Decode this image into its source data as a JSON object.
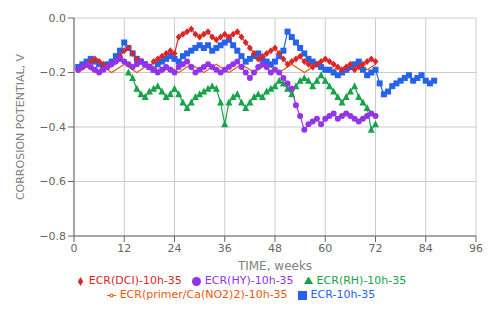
{
  "chart_data": {
    "type": "line",
    "xlabel": "TIME, weeks",
    "ylabel": "CORROSION POTENTIAL, V",
    "xlim": [
      0,
      96
    ],
    "ylim": [
      -0.8,
      0
    ],
    "xticks": [
      0,
      12,
      24,
      36,
      48,
      60,
      72,
      84,
      96
    ],
    "yticks": [
      {
        "value": 0,
        "label": "0.0"
      },
      {
        "value": -0.2,
        "label": "−0.2"
      },
      {
        "value": -0.4,
        "label": "−0.4"
      },
      {
        "value": -0.6,
        "label": "−0.6"
      },
      {
        "value": -0.8,
        "label": "−0.8"
      }
    ],
    "grid": true,
    "legend": "bottom",
    "series": [
      {
        "name": "ECR-10h-35",
        "color": "#2563eb",
        "marker": "square",
        "x": [
          1,
          2,
          3,
          4,
          5,
          6,
          7,
          8,
          9,
          10,
          11,
          12,
          13,
          14,
          15,
          16,
          17,
          18,
          19,
          20,
          21,
          22,
          23,
          24,
          25,
          26,
          27,
          28,
          29,
          30,
          31,
          32,
          33,
          34,
          35,
          36,
          37,
          38,
          39,
          40,
          41,
          42,
          43,
          44,
          45,
          46,
          47,
          48,
          49,
          50,
          51,
          52,
          53,
          54,
          55,
          56,
          57,
          58,
          59,
          60,
          61,
          62,
          63,
          64,
          65,
          66,
          67,
          68,
          69,
          70,
          71,
          72,
          73,
          74,
          75,
          76,
          77,
          78,
          79,
          80,
          81,
          82,
          83,
          84,
          85,
          86
        ],
        "values": [
          -0.18,
          -0.17,
          -0.16,
          -0.15,
          -0.16,
          -0.17,
          -0.18,
          -0.17,
          -0.16,
          -0.14,
          -0.12,
          -0.09,
          -0.11,
          -0.13,
          -0.15,
          -0.16,
          -0.17,
          -0.18,
          -0.19,
          -0.17,
          -0.16,
          -0.15,
          -0.14,
          -0.15,
          -0.16,
          -0.14,
          -0.13,
          -0.12,
          -0.11,
          -0.1,
          -0.11,
          -0.1,
          -0.12,
          -0.11,
          -0.1,
          -0.09,
          -0.08,
          -0.1,
          -0.12,
          -0.14,
          -0.16,
          -0.15,
          -0.14,
          -0.13,
          -0.15,
          -0.16,
          -0.17,
          -0.16,
          -0.14,
          -0.12,
          -0.05,
          -0.07,
          -0.09,
          -0.11,
          -0.13,
          -0.15,
          -0.16,
          -0.17,
          -0.18,
          -0.19,
          -0.19,
          -0.2,
          -0.21,
          -0.2,
          -0.19,
          -0.18,
          -0.17,
          -0.16,
          -0.19,
          -0.21,
          -0.2,
          -0.19,
          -0.24,
          -0.28,
          -0.27,
          -0.25,
          -0.24,
          -0.23,
          -0.22,
          -0.21,
          -0.23,
          -0.22,
          -0.21,
          -0.23,
          -0.24,
          -0.23
        ]
      },
      {
        "name": "ECR(DCI)-10h-35",
        "color": "#dc2626",
        "marker": "diamond",
        "x": [
          1,
          2,
          3,
          4,
          5,
          6,
          7,
          8,
          9,
          10,
          11,
          12,
          13,
          14,
          15,
          16,
          17,
          18,
          19,
          20,
          21,
          22,
          23,
          24,
          25,
          26,
          27,
          28,
          29,
          30,
          31,
          32,
          33,
          34,
          35,
          36,
          37,
          38,
          39,
          40,
          41,
          42,
          43,
          44,
          45,
          46,
          47,
          48,
          49,
          50,
          51,
          52,
          53,
          54,
          55,
          56,
          57,
          58,
          59,
          60,
          61,
          62,
          63,
          64,
          65,
          66,
          67,
          68,
          69,
          70,
          71,
          72
        ],
        "values": [
          -0.19,
          -0.18,
          -0.17,
          -0.16,
          -0.15,
          -0.16,
          -0.17,
          -0.18,
          -0.17,
          -0.16,
          -0.14,
          -0.12,
          -0.11,
          -0.13,
          -0.15,
          -0.16,
          -0.17,
          -0.18,
          -0.16,
          -0.15,
          -0.14,
          -0.13,
          -0.12,
          -0.13,
          -0.07,
          -0.06,
          -0.05,
          -0.04,
          -0.06,
          -0.07,
          -0.06,
          -0.05,
          -0.07,
          -0.08,
          -0.07,
          -0.06,
          -0.07,
          -0.06,
          -0.05,
          -0.07,
          -0.09,
          -0.11,
          -0.13,
          -0.15,
          -0.14,
          -0.13,
          -0.12,
          -0.11,
          -0.13,
          -0.15,
          -0.17,
          -0.16,
          -0.15,
          -0.14,
          -0.16,
          -0.17,
          -0.18,
          -0.17,
          -0.16,
          -0.15,
          -0.16,
          -0.17,
          -0.18,
          -0.19,
          -0.18,
          -0.17,
          -0.19,
          -0.18,
          -0.17,
          -0.16,
          -0.15,
          -0.16
        ]
      },
      {
        "name": "ECR(RH)-10h-35",
        "color": "#16a34a",
        "marker": "triangle",
        "x": [
          13,
          14,
          15,
          16,
          17,
          18,
          19,
          20,
          21,
          22,
          23,
          24,
          25,
          26,
          27,
          28,
          29,
          30,
          31,
          32,
          33,
          34,
          35,
          36,
          37,
          38,
          39,
          40,
          41,
          42,
          43,
          44,
          45,
          46,
          47,
          48,
          49,
          50,
          51,
          52,
          53,
          54,
          55,
          56,
          57,
          58,
          59,
          60,
          61,
          62,
          63,
          64,
          65,
          66,
          67,
          68,
          69,
          70,
          71,
          72
        ],
        "values": [
          -0.2,
          -0.22,
          -0.26,
          -0.28,
          -0.29,
          -0.27,
          -0.26,
          -0.25,
          -0.27,
          -0.29,
          -0.28,
          -0.26,
          -0.28,
          -0.31,
          -0.33,
          -0.31,
          -0.29,
          -0.28,
          -0.27,
          -0.26,
          -0.25,
          -0.26,
          -0.31,
          -0.39,
          -0.31,
          -0.29,
          -0.28,
          -0.31,
          -0.33,
          -0.31,
          -0.29,
          -0.28,
          -0.29,
          -0.27,
          -0.26,
          -0.25,
          -0.23,
          -0.24,
          -0.26,
          -0.28,
          -0.25,
          -0.23,
          -0.22,
          -0.23,
          -0.25,
          -0.23,
          -0.21,
          -0.23,
          -0.25,
          -0.27,
          -0.29,
          -0.31,
          -0.29,
          -0.27,
          -0.25,
          -0.29,
          -0.31,
          -0.33,
          -0.41,
          -0.39
        ]
      },
      {
        "name": "ECR(HY)-10h-35",
        "color": "#9333ea",
        "marker": "circle",
        "x": [
          1,
          2,
          3,
          4,
          5,
          6,
          7,
          8,
          9,
          10,
          11,
          12,
          13,
          14,
          15,
          16,
          17,
          18,
          19,
          20,
          21,
          22,
          23,
          24,
          25,
          26,
          27,
          28,
          29,
          30,
          31,
          32,
          33,
          34,
          35,
          36,
          37,
          38,
          39,
          40,
          41,
          42,
          43,
          44,
          45,
          46,
          47,
          48,
          49,
          50,
          51,
          52,
          53,
          54,
          55,
          56,
          57,
          58,
          59,
          60,
          61,
          62,
          63,
          64,
          65,
          66,
          67,
          68,
          69,
          70,
          71,
          72
        ],
        "values": [
          -0.19,
          -0.18,
          -0.17,
          -0.18,
          -0.19,
          -0.2,
          -0.19,
          -0.18,
          -0.17,
          -0.16,
          -0.15,
          -0.16,
          -0.17,
          -0.18,
          -0.17,
          -0.16,
          -0.17,
          -0.18,
          -0.19,
          -0.2,
          -0.19,
          -0.18,
          -0.19,
          -0.2,
          -0.18,
          -0.17,
          -0.16,
          -0.18,
          -0.2,
          -0.19,
          -0.18,
          -0.17,
          -0.18,
          -0.19,
          -0.2,
          -0.19,
          -0.18,
          -0.17,
          -0.16,
          -0.18,
          -0.2,
          -0.22,
          -0.2,
          -0.18,
          -0.17,
          -0.18,
          -0.2,
          -0.19,
          -0.2,
          -0.22,
          -0.24,
          -0.26,
          -0.32,
          -0.36,
          -0.41,
          -0.39,
          -0.38,
          -0.37,
          -0.39,
          -0.37,
          -0.36,
          -0.35,
          -0.37,
          -0.36,
          -0.35,
          -0.36,
          -0.37,
          -0.38,
          -0.37,
          -0.36,
          -0.35,
          -0.36
        ]
      },
      {
        "name": "ECR(primer/Ca(NO2)2)-10h-35",
        "color": "#ea580c",
        "marker": "none",
        "x": [
          1,
          2,
          3,
          4,
          5,
          6,
          7,
          8,
          9,
          10,
          11,
          12,
          13,
          14,
          15,
          16,
          17,
          18,
          19,
          20,
          21,
          22,
          23,
          24,
          25,
          26,
          27,
          28,
          29,
          30,
          31,
          32,
          33,
          34,
          35,
          36,
          37,
          38,
          39,
          40,
          41,
          42,
          43,
          44,
          45,
          46,
          47,
          48,
          49,
          50,
          51,
          52,
          53,
          54,
          55,
          56,
          57,
          58,
          59,
          60,
          61,
          62,
          63,
          64,
          65,
          66,
          67,
          68,
          69,
          70,
          71,
          72
        ],
        "values": [
          -0.2,
          -0.19,
          -0.18,
          -0.19,
          -0.2,
          -0.19,
          -0.18,
          -0.19,
          -0.2,
          -0.19,
          -0.18,
          -0.17,
          -0.18,
          -0.19,
          -0.2,
          -0.19,
          -0.18,
          -0.17,
          -0.18,
          -0.19,
          -0.2,
          -0.19,
          -0.18,
          -0.19,
          -0.2,
          -0.19,
          -0.18,
          -0.17,
          -0.18,
          -0.19,
          -0.2,
          -0.19,
          -0.18,
          -0.17,
          -0.18,
          -0.19,
          -0.2,
          -0.19,
          -0.18,
          -0.17,
          -0.18,
          -0.19,
          -0.2,
          -0.19,
          -0.18,
          -0.17,
          -0.18,
          -0.19,
          -0.2,
          -0.19,
          -0.18,
          -0.17,
          -0.18,
          -0.19,
          -0.2,
          -0.19,
          -0.18,
          -0.17,
          -0.18,
          -0.19,
          -0.2,
          -0.19,
          -0.18,
          -0.19,
          -0.2,
          -0.19,
          -0.18,
          -0.17,
          -0.18,
          -0.19,
          -0.18,
          -0.17
        ]
      }
    ]
  }
}
